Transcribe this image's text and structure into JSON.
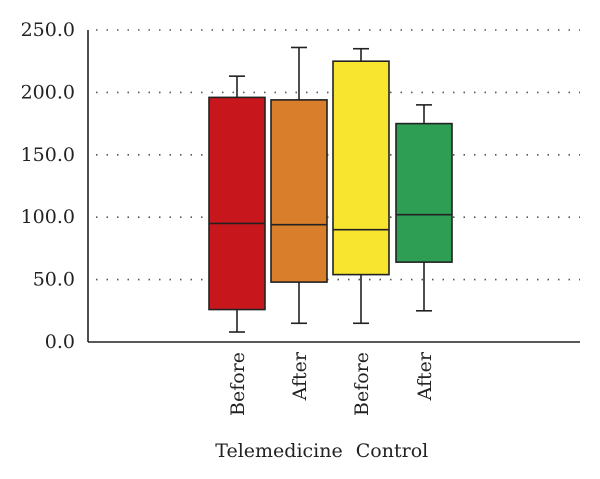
{
  "chart_data": {
    "type": "boxplot",
    "title": "",
    "xlabel": "",
    "ylabel": "",
    "ylim": [
      0,
      250
    ],
    "yticks": [
      "0.0",
      "50.0",
      "100.0",
      "150.0",
      "200.0",
      "250.0"
    ],
    "ytick_values": [
      0,
      50,
      100,
      150,
      200,
      250
    ],
    "grid": true,
    "categories": [
      "Before",
      "After",
      "Before",
      "After"
    ],
    "groups": [
      {
        "label": "Telemedicine",
        "categories": [
          0,
          1
        ]
      },
      {
        "label": "Control",
        "categories": [
          2,
          3
        ]
      }
    ],
    "boxes": [
      {
        "category": "Before",
        "min": 8,
        "q1": 26,
        "median": 95,
        "q3": 196,
        "max": 213,
        "color": "#c8161d"
      },
      {
        "category": "After",
        "min": 15,
        "q1": 48,
        "median": 94,
        "q3": 194,
        "max": 236,
        "color": "#d97e2a"
      },
      {
        "category": "Before",
        "min": 15,
        "q1": 54,
        "median": 90,
        "q3": 225,
        "max": 235,
        "color": "#f8e530"
      },
      {
        "category": "After",
        "min": 25,
        "q1": 64,
        "median": 102,
        "q3": 175,
        "max": 190,
        "color": "#2e9e55"
      }
    ]
  }
}
